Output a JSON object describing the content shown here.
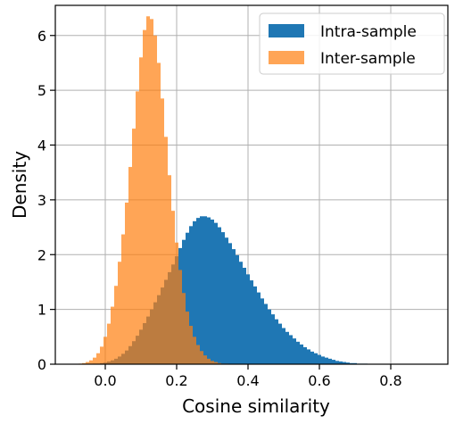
{
  "chart_data": {
    "type": "bar",
    "title": "",
    "xlabel": "Cosine similarity",
    "ylabel": "Density",
    "xlim": [
      -0.14,
      0.96
    ],
    "ylim": [
      0,
      6.55
    ],
    "xticks": [
      0.0,
      0.2,
      0.4,
      0.6,
      0.8
    ],
    "xtick_labels": [
      "0.0",
      "0.2",
      "0.4",
      "0.6",
      "0.8"
    ],
    "yticks": [
      0,
      1,
      2,
      3,
      4,
      5,
      6
    ],
    "ytick_labels": [
      "0",
      "1",
      "2",
      "3",
      "4",
      "5",
      "6"
    ],
    "grid": true,
    "legend_position": "top-right",
    "series": [
      {
        "name": "Intra-sample",
        "color": "#1f77b4",
        "opacity": 1.0,
        "x": [
          -0.08,
          -0.07,
          -0.06,
          -0.05,
          -0.04,
          -0.03,
          -0.02,
          -0.01,
          0.0,
          0.01,
          0.02,
          0.03,
          0.04,
          0.05,
          0.06,
          0.07,
          0.08,
          0.09,
          0.1,
          0.11,
          0.12,
          0.13,
          0.14,
          0.15,
          0.16,
          0.17,
          0.18,
          0.19,
          0.2,
          0.21,
          0.22,
          0.23,
          0.24,
          0.25,
          0.26,
          0.27,
          0.28,
          0.29,
          0.3,
          0.31,
          0.32,
          0.33,
          0.34,
          0.35,
          0.36,
          0.37,
          0.38,
          0.39,
          0.4,
          0.41,
          0.42,
          0.43,
          0.44,
          0.45,
          0.46,
          0.47,
          0.48,
          0.49,
          0.5,
          0.51,
          0.52,
          0.53,
          0.54,
          0.55,
          0.56,
          0.57,
          0.58,
          0.59,
          0.6,
          0.61,
          0.62,
          0.63,
          0.64,
          0.65,
          0.66,
          0.67,
          0.68,
          0.69,
          0.7,
          0.71,
          0.72,
          0.73,
          0.74,
          0.75,
          0.76,
          0.77,
          0.78,
          0.79,
          0.8,
          0.81,
          0.82,
          0.83,
          0.84,
          0.85,
          0.86,
          0.87,
          0.88,
          0.89,
          0.9
        ],
        "values": [
          0.0,
          0.0,
          0.0,
          0.0,
          0.0,
          0.01,
          0.01,
          0.02,
          0.03,
          0.05,
          0.07,
          0.1,
          0.14,
          0.19,
          0.25,
          0.33,
          0.42,
          0.52,
          0.63,
          0.75,
          0.87,
          1.0,
          1.13,
          1.26,
          1.4,
          1.54,
          1.68,
          1.82,
          1.97,
          2.12,
          2.27,
          2.4,
          2.52,
          2.61,
          2.67,
          2.7,
          2.7,
          2.68,
          2.64,
          2.58,
          2.5,
          2.41,
          2.31,
          2.21,
          2.1,
          1.99,
          1.87,
          1.76,
          1.64,
          1.53,
          1.42,
          1.31,
          1.2,
          1.1,
          1.0,
          0.91,
          0.82,
          0.74,
          0.66,
          0.59,
          0.53,
          0.47,
          0.41,
          0.36,
          0.31,
          0.27,
          0.23,
          0.2,
          0.17,
          0.14,
          0.12,
          0.1,
          0.08,
          0.06,
          0.05,
          0.04,
          0.03,
          0.02,
          0.02,
          0.01,
          0.01,
          0.01,
          0.0,
          0.0,
          0.0,
          0.0,
          0.0,
          0.0,
          0.0,
          0.0,
          0.0,
          0.0,
          0.0,
          0.0,
          0.0,
          0.0,
          0.0,
          0.0,
          0.0
        ]
      },
      {
        "name": "Inter-sample",
        "color": "#ff7f0e",
        "opacity": 0.7,
        "x": [
          -0.08,
          -0.07,
          -0.06,
          -0.05,
          -0.04,
          -0.03,
          -0.02,
          -0.01,
          0.0,
          0.01,
          0.02,
          0.03,
          0.04,
          0.05,
          0.06,
          0.07,
          0.08,
          0.09,
          0.1,
          0.11,
          0.12,
          0.13,
          0.14,
          0.15,
          0.16,
          0.17,
          0.18,
          0.19,
          0.2,
          0.21,
          0.22,
          0.23,
          0.24,
          0.25,
          0.26,
          0.27,
          0.28,
          0.29,
          0.3,
          0.31,
          0.32,
          0.33,
          0.34,
          0.35,
          0.36,
          0.37,
          0.38,
          0.39,
          0.4
        ],
        "values": [
          0.0,
          0.01,
          0.02,
          0.04,
          0.07,
          0.12,
          0.2,
          0.32,
          0.5,
          0.74,
          1.05,
          1.43,
          1.87,
          2.37,
          2.95,
          3.6,
          4.3,
          4.98,
          5.6,
          6.1,
          6.35,
          6.3,
          6.0,
          5.5,
          4.85,
          4.15,
          3.45,
          2.8,
          2.22,
          1.72,
          1.3,
          0.96,
          0.7,
          0.5,
          0.35,
          0.24,
          0.16,
          0.1,
          0.06,
          0.04,
          0.02,
          0.01,
          0.01,
          0.0,
          0.0,
          0.0,
          0.0,
          0.0,
          0.0
        ]
      }
    ]
  }
}
